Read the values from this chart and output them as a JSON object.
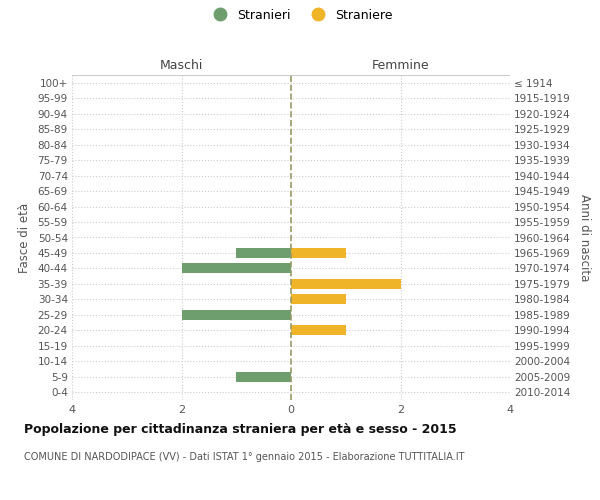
{
  "age_groups": [
    "100+",
    "95-99",
    "90-94",
    "85-89",
    "80-84",
    "75-79",
    "70-74",
    "65-69",
    "60-64",
    "55-59",
    "50-54",
    "45-49",
    "40-44",
    "35-39",
    "30-34",
    "25-29",
    "20-24",
    "15-19",
    "10-14",
    "5-9",
    "0-4"
  ],
  "birth_years": [
    "≤ 1914",
    "1915-1919",
    "1920-1924",
    "1925-1929",
    "1930-1934",
    "1935-1939",
    "1940-1944",
    "1945-1949",
    "1950-1954",
    "1955-1959",
    "1960-1964",
    "1965-1969",
    "1970-1974",
    "1975-1979",
    "1980-1984",
    "1985-1989",
    "1990-1994",
    "1995-1999",
    "2000-2004",
    "2005-2009",
    "2010-2014"
  ],
  "maschi": [
    0,
    0,
    0,
    0,
    0,
    0,
    0,
    0,
    0,
    0,
    0,
    1,
    2,
    0,
    0,
    2,
    0,
    0,
    0,
    1,
    0
  ],
  "femmine": [
    0,
    0,
    0,
    0,
    0,
    0,
    0,
    0,
    0,
    0,
    0,
    1,
    0,
    2,
    1,
    0,
    1,
    0,
    0,
    0,
    0
  ],
  "color_maschi": "#6e9e6e",
  "color_femmine": "#f0b429",
  "title_main": "Popolazione per cittadinanza straniera per età e sesso - 2015",
  "title_sub": "COMUNE DI NARDODIPACE (VV) - Dati ISTAT 1° gennaio 2015 - Elaborazione TUTTITALIA.IT",
  "legend_maschi": "Stranieri",
  "legend_femmine": "Straniere",
  "label_maschi": "Maschi",
  "label_femmine": "Femmine",
  "ylabel_left": "Fasce di età",
  "ylabel_right": "Anni di nascita",
  "xlim": 4,
  "bg_color": "#ffffff",
  "grid_color": "#cccccc",
  "center_line_color": "#999966",
  "tick_color": "#888888",
  "label_color": "#555555"
}
